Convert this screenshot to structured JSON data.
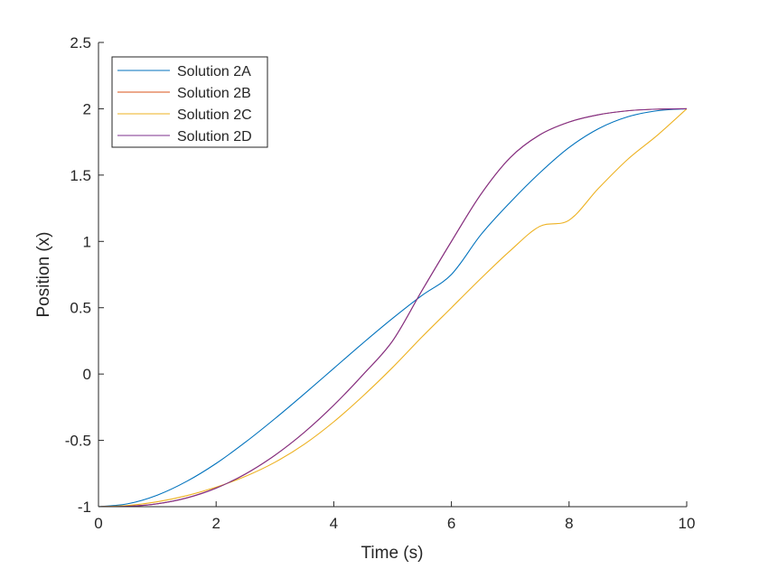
{
  "chart_data": {
    "type": "line",
    "title": "",
    "xlabel": "Time (s)",
    "ylabel": "Position (x)",
    "xlim": [
      0,
      10
    ],
    "ylim": [
      -1,
      2.5
    ],
    "xticks": [
      0,
      2,
      4,
      6,
      8,
      10
    ],
    "xtick_labels": [
      "0",
      "2",
      "4",
      "6",
      "8",
      "10"
    ],
    "yticks": [
      -1,
      -0.5,
      0,
      0.5,
      1,
      1.5,
      2,
      2.5
    ],
    "ytick_labels": [
      "-1",
      "-0.5",
      "0",
      "0.5",
      "1",
      "1.5",
      "2",
      "2.5"
    ],
    "grid": false,
    "legend_position": "top-left",
    "x": [
      0,
      0.5,
      1,
      1.5,
      2,
      2.5,
      3,
      3.5,
      4,
      4.5,
      5,
      5.5,
      6,
      6.5,
      7,
      7.5,
      8,
      8.5,
      9,
      9.5,
      10
    ],
    "series": [
      {
        "name": "Solution 2A",
        "color": "#0072BD",
        "values": [
          -1,
          -0.978,
          -0.913,
          -0.809,
          -0.674,
          -0.513,
          -0.336,
          -0.149,
          0.043,
          0.235,
          0.42,
          0.593,
          0.751,
          1.05,
          1.295,
          1.516,
          1.708,
          1.85,
          1.94,
          1.985,
          2.0
        ]
      },
      {
        "name": "Solution 2B",
        "color": "#D95319",
        "values": [
          -1,
          -0.997,
          -0.978,
          -0.934,
          -0.86,
          -0.753,
          -0.612,
          -0.439,
          -0.235,
          -0.003,
          0.25,
          0.63,
          1.0,
          1.355,
          1.632,
          1.803,
          1.9,
          1.955,
          1.985,
          1.997,
          2.0
        ]
      },
      {
        "name": "Solution 2C",
        "color": "#EDB120",
        "values": [
          -1,
          -0.991,
          -0.963,
          -0.917,
          -0.853,
          -0.771,
          -0.665,
          -0.529,
          -0.36,
          -0.164,
          0.05,
          0.28,
          0.5,
          0.72,
          0.93,
          1.113,
          1.16,
          1.4,
          1.62,
          1.8,
          2.0
        ]
      },
      {
        "name": "Solution 2D",
        "color": "#7E2F8E",
        "values": [
          -1,
          -0.997,
          -0.978,
          -0.934,
          -0.86,
          -0.753,
          -0.612,
          -0.439,
          -0.235,
          -0.003,
          0.25,
          0.63,
          1.0,
          1.355,
          1.632,
          1.803,
          1.9,
          1.955,
          1.985,
          1.997,
          2.0
        ]
      }
    ]
  }
}
